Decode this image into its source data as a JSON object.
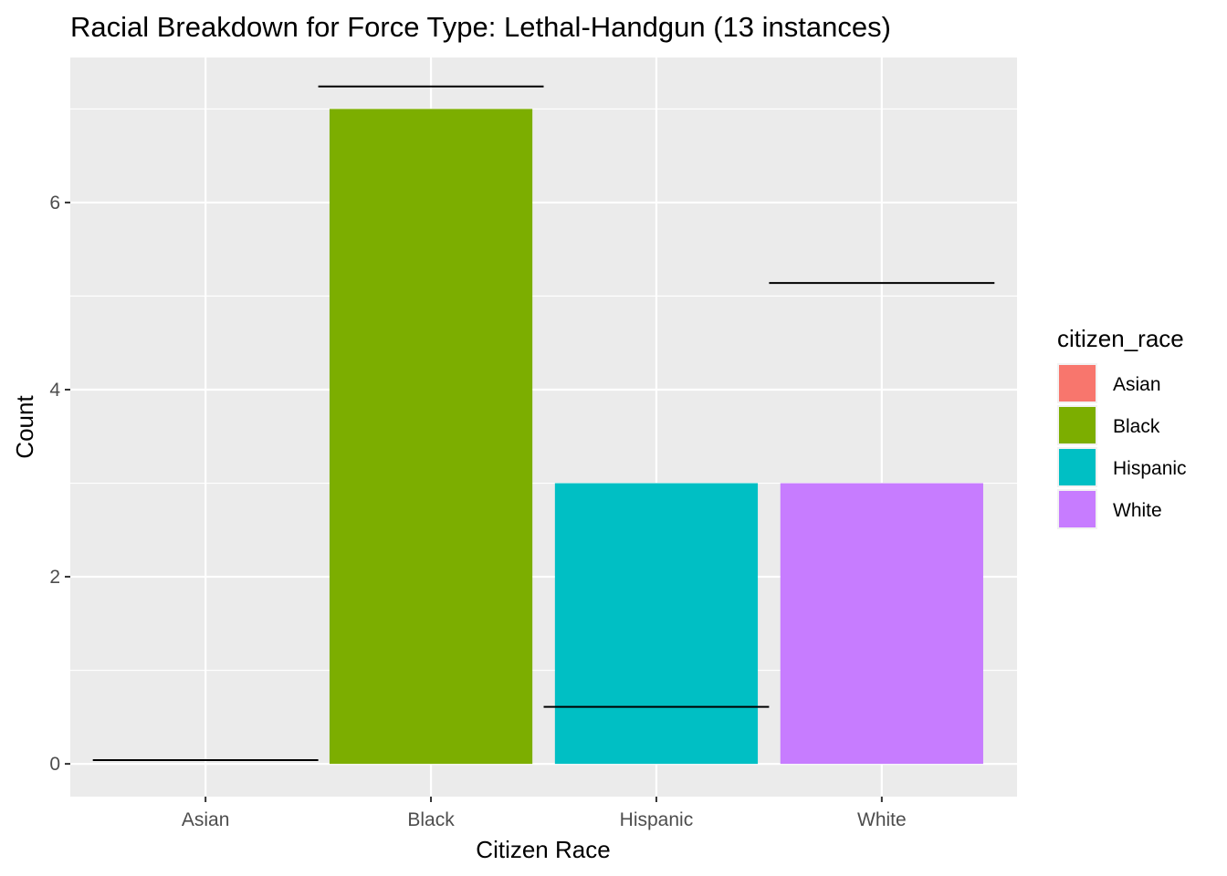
{
  "chart_data": {
    "type": "bar",
    "title": "Racial Breakdown for Force Type: Lethal-Handgun (13 instances)",
    "xlabel": "Citizen Race",
    "ylabel": "Count",
    "categories": [
      "Asian",
      "Black",
      "Hispanic",
      "White"
    ],
    "values": [
      0,
      7,
      3,
      3
    ],
    "reference_lines": [
      0.04,
      7.24,
      0.61,
      5.14
    ],
    "colors": [
      "#F8766D",
      "#7CAE00",
      "#00BFC4",
      "#C77CFF"
    ],
    "ylim": [
      -0.35,
      7.55
    ],
    "yticks": [
      0,
      2,
      4,
      6
    ],
    "ytick_labels": [
      "0",
      "2",
      "4",
      "6"
    ],
    "grid": true,
    "panel_background": "#EBEBEB",
    "legend": {
      "title": "citizen_race",
      "position": "right",
      "items": [
        "Asian",
        "Black",
        "Hispanic",
        "White"
      ]
    }
  }
}
